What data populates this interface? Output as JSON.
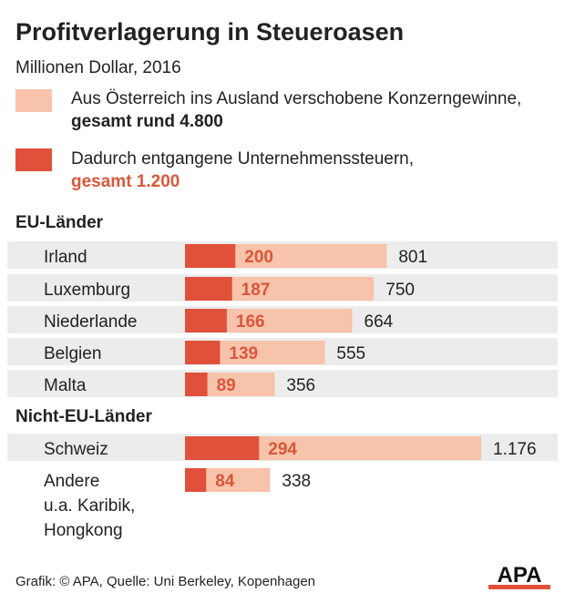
{
  "title": "Profitverlagerung in Steueroasen",
  "subtitle": "Millionen Dollar, 2016",
  "legend": {
    "profits_text": "Aus Österreich ins Ausland verschobene Konzerngewinne,",
    "profits_total": "gesamt rund 4.800",
    "taxes_text": "Dadurch entgangene Unternehmenssteuern,",
    "taxes_total": "gesamt 1.200"
  },
  "colors": {
    "light": "#f7c3aa",
    "dark": "#e0503a",
    "row_bg": "#ececec",
    "tax_label": "#d9573d",
    "text": "#222222"
  },
  "footer": "Grafik: © APA, Quelle: Uni Berkeley, Kopenhagen",
  "logo_text": "APA",
  "chart_data": {
    "type": "bar",
    "orientation": "horizontal",
    "groups": [
      {
        "title": "EU-Länder",
        "categories": [
          "Irland",
          "Luxemburg",
          "Niederlande",
          "Belgien",
          "Malta"
        ],
        "category_lines": [
          [
            "Irland"
          ],
          [
            "Luxemburg"
          ],
          [
            "Niederlande"
          ],
          [
            "Belgien"
          ],
          [
            "Malta"
          ]
        ],
        "profits": [
          801,
          750,
          664,
          555,
          356
        ],
        "profit_labels": [
          "801",
          "750",
          "664",
          "555",
          "356"
        ],
        "taxes": [
          200,
          187,
          166,
          139,
          89
        ],
        "tax_labels": [
          "200",
          "187",
          "166",
          "139",
          "89"
        ]
      },
      {
        "title": "Nicht-EU-Länder",
        "categories": [
          "Schweiz",
          "Andere u.a. Karibik, Hongkong"
        ],
        "category_lines": [
          [
            "Schweiz"
          ],
          [
            "Andere",
            "u.a. Karibik,",
            "Hongkong"
          ]
        ],
        "profits": [
          1176,
          338
        ],
        "profit_labels": [
          "1.176",
          "338"
        ],
        "taxes": [
          294,
          84
        ],
        "tax_labels": [
          "294",
          "84"
        ]
      }
    ],
    "series": [
      {
        "name": "Aus Österreich ins Ausland verschobene Konzerngewinne",
        "key": "profits"
      },
      {
        "name": "Dadurch entgangene Unternehmenssteuern",
        "key": "taxes"
      }
    ]
  }
}
